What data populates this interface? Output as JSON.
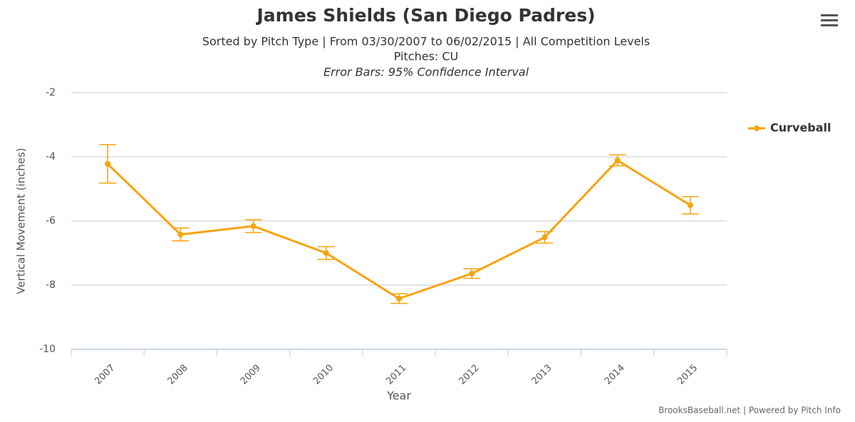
{
  "chart_data": {
    "type": "line",
    "title": "James Shields (San Diego Padres)",
    "subtitle": "Sorted by Pitch Type | From 03/30/2007 to 06/02/2015 | All Competition Levels",
    "subtitle_pitches": "Pitches: CU",
    "note": "Error Bars: 95% Confidence Interval",
    "x_label": "Year",
    "y_label": "Vertical Movement (inches)",
    "credits": "BrooksBaseball.net | Powered by Pitch Info",
    "categories": [
      "2007",
      "2008",
      "2009",
      "2010",
      "2011",
      "2012",
      "2013",
      "2014",
      "2015"
    ],
    "series": [
      {
        "name": "Curveball",
        "color": "#f7a30e",
        "values": [
          -4.22,
          -6.42,
          -6.16,
          -7.0,
          -8.42,
          -7.64,
          -6.51,
          -4.11,
          -5.51
        ],
        "errors": [
          0.6,
          0.2,
          0.2,
          0.2,
          0.15,
          0.15,
          0.18,
          0.17,
          0.27
        ]
      }
    ],
    "ylim": [
      -10,
      -2
    ],
    "yticks": [
      -10,
      -8,
      -6,
      -4,
      -2
    ],
    "grid": true,
    "legend": "right"
  }
}
